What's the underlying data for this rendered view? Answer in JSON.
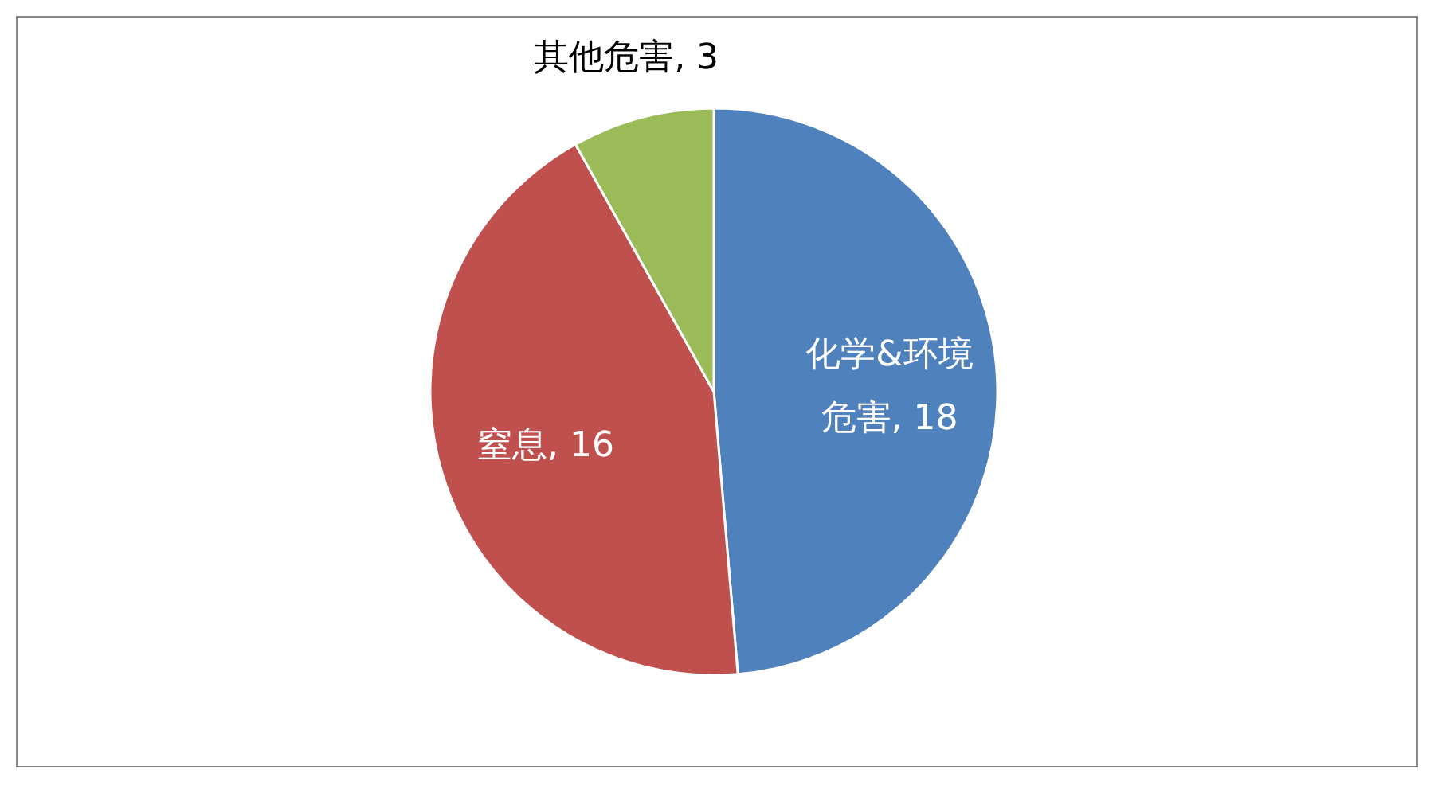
{
  "chart_data": {
    "type": "pie",
    "categories": [
      "化学&环境危害",
      "窒息",
      "其他危害"
    ],
    "values": [
      18,
      16,
      3
    ],
    "colors": [
      "#4f81bd",
      "#c0504d",
      "#9bbb59"
    ],
    "value_labels": [
      ", 18",
      ", 16",
      ", 3"
    ],
    "legend": false
  }
}
